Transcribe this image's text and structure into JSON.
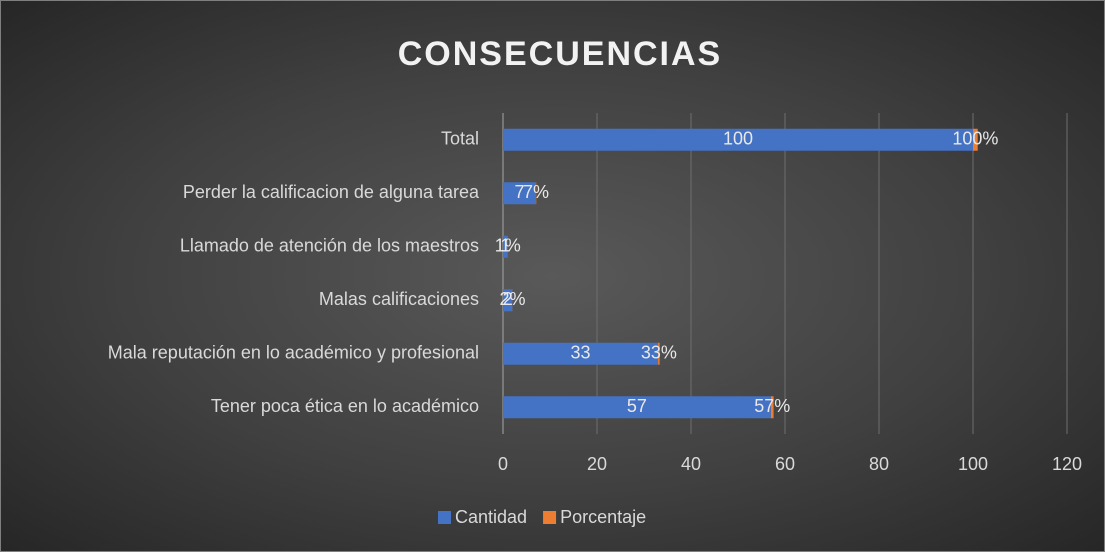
{
  "chart_data": {
    "type": "stacked_barh",
    "title": "CONSECUENCIAS",
    "categories": [
      "Total",
      "Perder la calificacion de alguna tarea",
      "Llamado de atención de los maestros",
      "Malas calificaciones",
      "Mala reputación en lo académico y profesional",
      "Tener poca ética en lo académico"
    ],
    "series": [
      {
        "name": "Cantidad",
        "color": "#4472c4",
        "values": [
          100,
          7,
          1,
          2,
          33,
          57
        ]
      },
      {
        "name": "Porcentaje",
        "color": "#ed7d31",
        "values": [
          1,
          0.07,
          0.01,
          0.02,
          0.33,
          0.57
        ],
        "value_labels": [
          "100%",
          "7%",
          "1%",
          "2%",
          "33%",
          "57%"
        ]
      }
    ],
    "xlim": [
      0,
      120
    ],
    "xticks": [
      0,
      20,
      40,
      60,
      80,
      100,
      120
    ],
    "grid": true,
    "legend": "bottom"
  }
}
